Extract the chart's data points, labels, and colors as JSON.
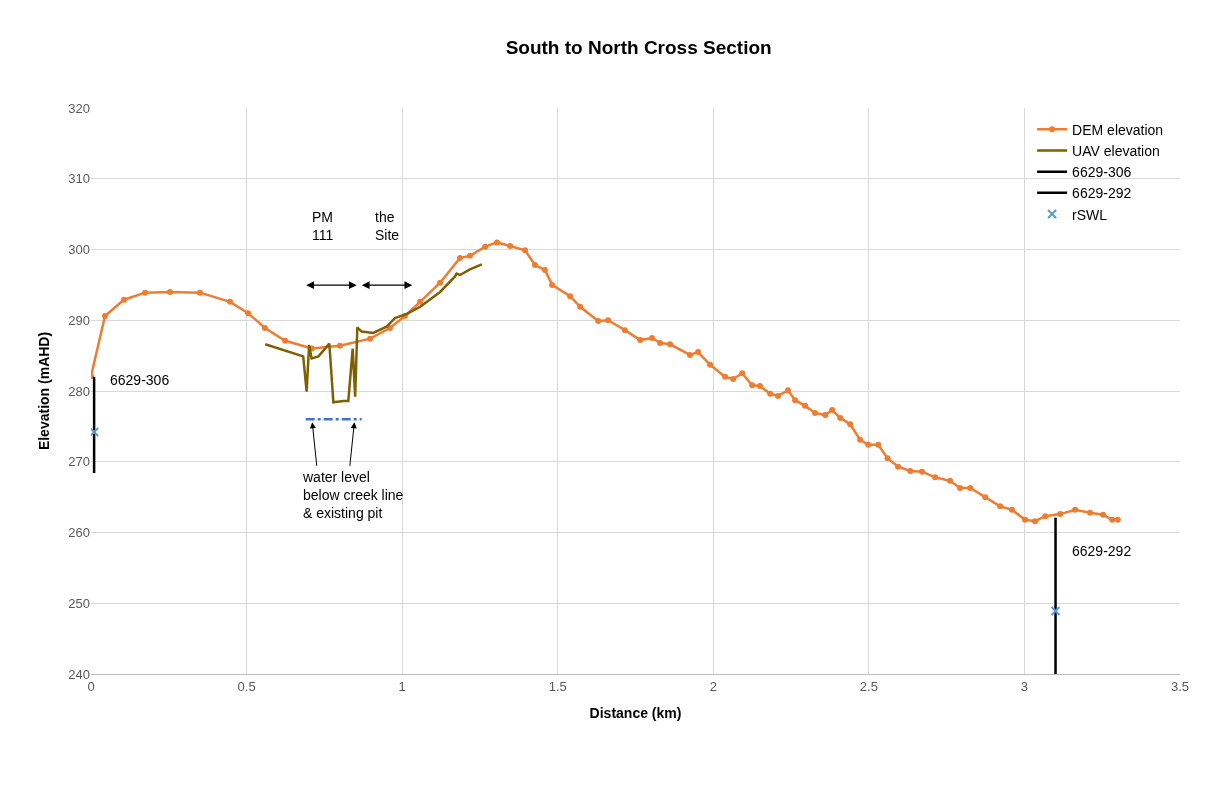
{
  "chart_data": {
    "type": "line",
    "title": "South to North Cross Section",
    "xlabel": "Distance (km)",
    "ylabel": "Elevation (mAHD)",
    "xlim": [
      0,
      3.5
    ],
    "xticks": [
      0,
      0.5,
      1,
      1.5,
      2,
      2.5,
      3,
      3.5
    ],
    "ylim": [
      240,
      320
    ],
    "yticks": [
      240,
      250,
      260,
      270,
      280,
      290,
      300,
      310,
      320
    ],
    "grid": true,
    "legend": "top right",
    "series": [
      {
        "name": "DEM elevation",
        "color": "#ed7d31",
        "marker": "circle",
        "x": [
          0,
          0.045,
          0.106,
          0.174,
          0.254,
          0.35,
          0.447,
          0.505,
          0.559,
          0.624,
          0.71,
          0.8,
          0.897,
          0.961,
          1.009,
          1.058,
          1.122,
          1.186,
          1.218,
          1.267,
          1.305,
          1.347,
          1.395,
          1.427,
          1.459,
          1.482,
          1.54,
          1.572,
          1.63,
          1.662,
          1.716,
          1.765,
          1.803,
          1.829,
          1.861,
          1.925,
          1.951,
          1.99,
          2.038,
          2.064,
          2.093,
          2.125,
          2.15,
          2.183,
          2.208,
          2.24,
          2.263,
          2.295,
          2.327,
          2.36,
          2.382,
          2.408,
          2.44,
          2.472,
          2.498,
          2.53,
          2.56,
          2.594,
          2.633,
          2.671,
          2.713,
          2.761,
          2.793,
          2.826,
          2.874,
          2.922,
          2.96,
          3.002,
          3.034,
          3.067,
          3.115,
          3.163,
          3.211,
          3.253,
          3.282,
          3.3
        ],
        "values": [
          282.1,
          290.6,
          292.9,
          293.9,
          294.0,
          293.9,
          292.6,
          291.0,
          288.9,
          287.1,
          286.0,
          286.4,
          287.4,
          288.9,
          290.6,
          292.6,
          295.3,
          298.8,
          299.1,
          300.4,
          301.0,
          300.5,
          299.9,
          297.8,
          297.1,
          295.0,
          293.4,
          291.9,
          289.9,
          290.0,
          288.6,
          287.2,
          287.5,
          286.8,
          286.6,
          285.1,
          285.5,
          283.7,
          282.0,
          281.7,
          282.5,
          280.8,
          280.7,
          279.6,
          279.3,
          280.1,
          278.7,
          277.9,
          276.9,
          276.6,
          277.3,
          276.2,
          275.3,
          273.1,
          272.4,
          272.4,
          270.5,
          269.3,
          268.7,
          268.6,
          267.8,
          267.3,
          266.3,
          266.3,
          265.0,
          263.7,
          263.2,
          261.8,
          261.6,
          262.3,
          262.6,
          263.2,
          262.8,
          262.5,
          261.8,
          261.8
        ]
      },
      {
        "name": "UAV elevation",
        "color": "#7f6000",
        "x": [
          0.56,
          0.682,
          0.693,
          0.701,
          0.709,
          0.731,
          0.766,
          0.779,
          0.811,
          0.827,
          0.841,
          0.849,
          0.856,
          0.87,
          0.907,
          0.95,
          0.977,
          1.015,
          1.058,
          1.122,
          1.17,
          1.175,
          1.186,
          1.218,
          1.256
        ],
        "values": [
          286.6,
          284.9,
          279.9,
          286.5,
          284.6,
          284.9,
          286.7,
          278.4,
          278.6,
          278.6,
          286.0,
          279.2,
          289.0,
          288.4,
          288.2,
          289.1,
          290.3,
          290.9,
          291.9,
          294.0,
          296.2,
          296.6,
          296.4,
          297.2,
          297.9
        ]
      },
      {
        "name": "6629-306",
        "color": "#000000",
        "x": [
          0.01,
          0.01
        ],
        "values": [
          282.0,
          268.4
        ]
      },
      {
        "name": "6629-292",
        "color": "#000000",
        "x": [
          3.1,
          3.1
        ],
        "values": [
          262.1,
          240
        ]
      },
      {
        "name": "rSWL",
        "type": "scatter",
        "color": "#5b9bd5",
        "marker": "cross",
        "x": [
          0.01,
          3.1
        ],
        "values": [
          274.2,
          248.9
        ]
      },
      {
        "color": "#4472c4",
        "line_style": "dashed",
        "x": [
          0.69,
          0.87
        ],
        "values": [
          276,
          276
        ]
      }
    ],
    "annotations": [
      {
        "text": "6629-306",
        "x": 0.01,
        "y": 281.6
      },
      {
        "text": "6629-292",
        "x": 3.1,
        "y": 257.4
      },
      "PM\n111",
      "the\nSite",
      {
        "text": "water level\nbelow creek line\n& existing pit",
        "x": 0.71,
        "y": 276
      }
    ]
  }
}
